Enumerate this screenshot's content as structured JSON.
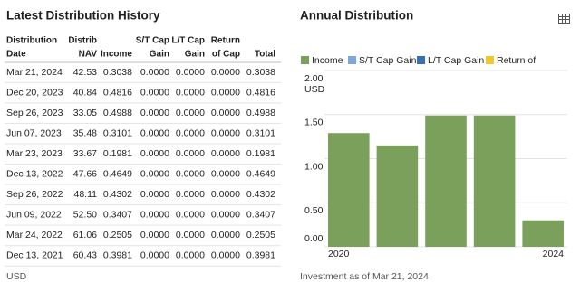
{
  "table": {
    "title": "Latest Distribution History",
    "header": [
      [
        "Distribution",
        "Date"
      ],
      [
        "Distrib",
        "NAV"
      ],
      [
        "Income"
      ],
      [
        "S/T Cap",
        "Gain"
      ],
      [
        "L/T Cap",
        "Gain"
      ],
      [
        "Return",
        "of Cap"
      ],
      [
        "Total"
      ]
    ],
    "rows": [
      [
        "Mar 21, 2024",
        "42.53",
        "0.3038",
        "0.0000",
        "0.0000",
        "0.0000",
        "0.3038"
      ],
      [
        "Dec 20, 2023",
        "40.84",
        "0.4816",
        "0.0000",
        "0.0000",
        "0.0000",
        "0.4816"
      ],
      [
        "Sep 26, 2023",
        "33.05",
        "0.4988",
        "0.0000",
        "0.0000",
        "0.0000",
        "0.4988"
      ],
      [
        "Jun 07, 2023",
        "35.48",
        "0.3101",
        "0.0000",
        "0.0000",
        "0.0000",
        "0.3101"
      ],
      [
        "Mar 23, 2023",
        "33.67",
        "0.1981",
        "0.0000",
        "0.0000",
        "0.0000",
        "0.1981"
      ],
      [
        "Dec 13, 2022",
        "47.66",
        "0.4649",
        "0.0000",
        "0.0000",
        "0.0000",
        "0.4649"
      ],
      [
        "Sep 26, 2022",
        "48.11",
        "0.4302",
        "0.0000",
        "0.0000",
        "0.0000",
        "0.4302"
      ],
      [
        "Jun 09, 2022",
        "52.50",
        "0.3407",
        "0.0000",
        "0.0000",
        "0.0000",
        "0.3407"
      ],
      [
        "Mar 24, 2022",
        "61.06",
        "0.2505",
        "0.0000",
        "0.0000",
        "0.0000",
        "0.2505"
      ],
      [
        "Dec 13, 2021",
        "60.43",
        "0.3981",
        "0.0000",
        "0.0000",
        "0.0000",
        "0.3981"
      ]
    ],
    "footnote": "USD"
  },
  "chart_data": {
    "type": "bar",
    "title": "Annual Distribution",
    "y_unit": "USD",
    "categories": [
      "2020",
      null,
      null,
      null,
      "2024"
    ],
    "series": [
      {
        "name": "Income",
        "color": "#7ba05b",
        "values": [
          1.29,
          1.15,
          1.49,
          1.49,
          0.3
        ]
      },
      {
        "name": "S/T Cap Gain",
        "color": "#7ea6d8",
        "values": [
          0,
          0,
          0,
          0,
          0
        ]
      },
      {
        "name": "L/T Cap Gain",
        "color": "#3a6fb0",
        "values": [
          0,
          0,
          0,
          0,
          0
        ]
      },
      {
        "name": "Return of Ca",
        "color": "#f2c830",
        "values": [
          0,
          0,
          0,
          0,
          0
        ]
      }
    ],
    "ylim": [
      0,
      2
    ],
    "yticks": [
      {
        "value": 0,
        "label": "0.00"
      },
      {
        "value": 0.5,
        "label": "0.50"
      },
      {
        "value": 1,
        "label": "1.00"
      },
      {
        "value": 1.5,
        "label": "1.50"
      },
      {
        "value": 2,
        "label": "2.00"
      }
    ],
    "grid": true,
    "footnote": "Investment as of Mar 21, 2024"
  }
}
